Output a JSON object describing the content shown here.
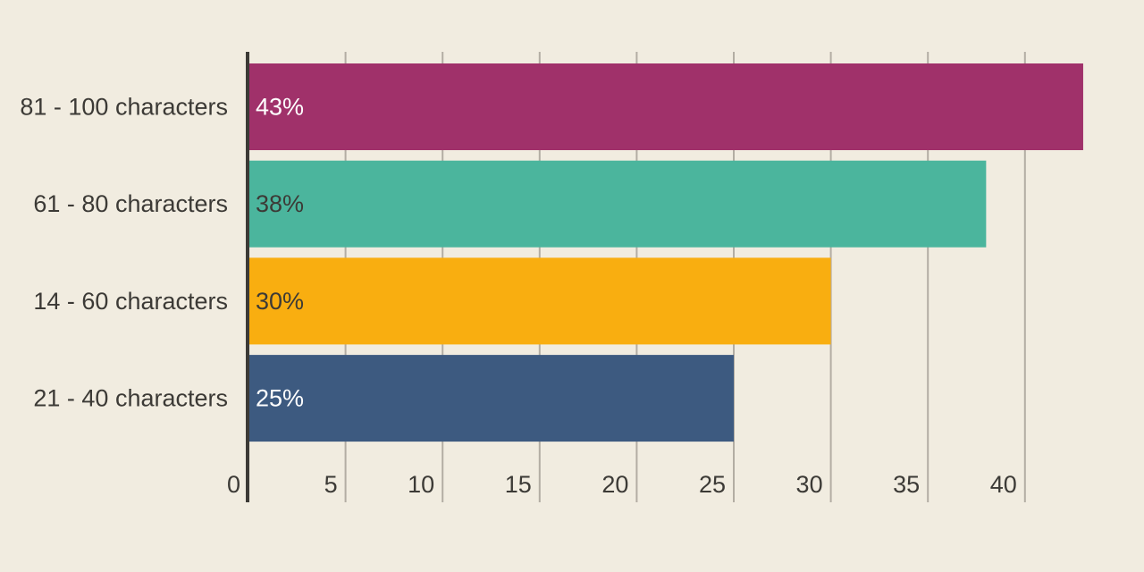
{
  "colors": {
    "background": "#f1ece0",
    "grid": "#b3ada3",
    "axis": "#3c3a36",
    "text": "#3c3a36"
  },
  "chart_data": {
    "type": "bar",
    "orientation": "horizontal",
    "categories": [
      "81 - 100 characters",
      "61 - 80 characters",
      "14 - 60 characters",
      "21 - 40 characters"
    ],
    "values": [
      43,
      38,
      30,
      25
    ],
    "data_labels": [
      "43%",
      "38%",
      "30%",
      "25%"
    ],
    "bar_colors": [
      "#a0316a",
      "#4bb59d",
      "#f9ae10",
      "#3d5a80"
    ],
    "data_label_colors": [
      "#ffffff",
      "#3c3a36",
      "#3c3a36",
      "#ffffff"
    ],
    "xticks": [
      0,
      5,
      10,
      15,
      20,
      25,
      30,
      35,
      40
    ],
    "xlim": [
      0,
      43
    ],
    "grid": "vertical",
    "title": "",
    "xlabel": "",
    "ylabel": ""
  }
}
